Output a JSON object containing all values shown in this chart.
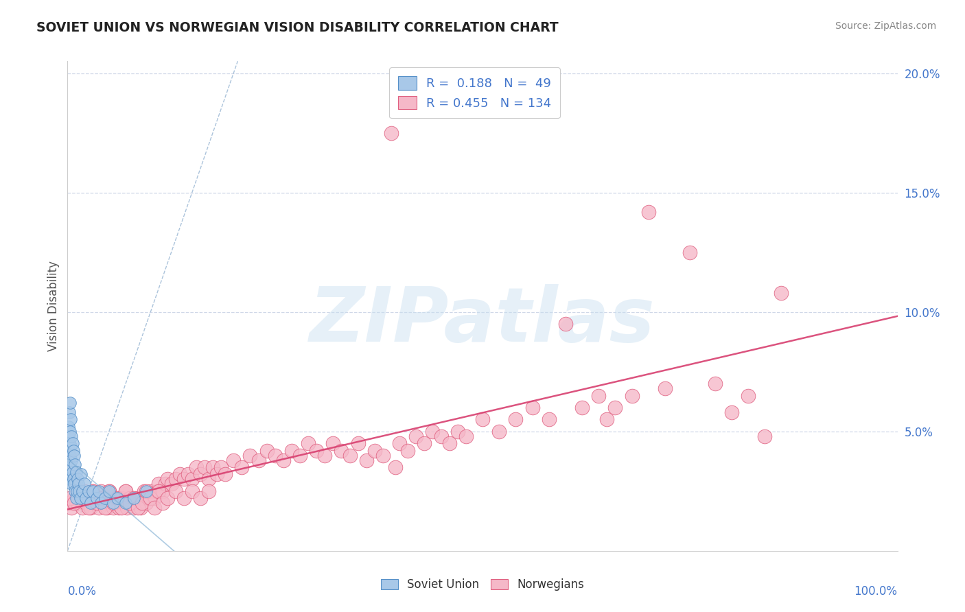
{
  "title": "SOVIET UNION VS NORWEGIAN VISION DISABILITY CORRELATION CHART",
  "source": "Source: ZipAtlas.com",
  "ylabel": "Vision Disability",
  "soviet_R": 0.188,
  "soviet_N": 49,
  "norwegian_R": 0.455,
  "norwegian_N": 134,
  "soviet_color": "#a8c8e8",
  "soviet_edge": "#5590c8",
  "norwegian_color": "#f5b8c8",
  "norwegian_edge": "#e06080",
  "soviet_trend_color": "#7aaad0",
  "norwegian_trend_color": "#d84070",
  "diag_color": "#88aacc",
  "grid_color": "#d0d8e8",
  "background_color": "#ffffff",
  "watermark_text": "ZIPatlas",
  "title_color": "#222222",
  "source_color": "#888888",
  "axis_label_color": "#4477cc",
  "ylabel_color": "#555555",
  "xlim": [
    0.0,
    1.0
  ],
  "ylim": [
    0.0,
    0.205
  ],
  "yticks": [
    0.05,
    0.1,
    0.15,
    0.2
  ],
  "yticklabels": [
    "5.0%",
    "10.0%",
    "15.0%",
    "20.0%"
  ],
  "soviet_x": [
    0.0005,
    0.001,
    0.001,
    0.0015,
    0.002,
    0.002,
    0.002,
    0.003,
    0.003,
    0.003,
    0.003,
    0.004,
    0.004,
    0.004,
    0.005,
    0.005,
    0.005,
    0.006,
    0.006,
    0.007,
    0.007,
    0.008,
    0.008,
    0.009,
    0.009,
    0.01,
    0.01,
    0.011,
    0.012,
    0.013,
    0.014,
    0.015,
    0.016,
    0.018,
    0.02,
    0.022,
    0.025,
    0.028,
    0.03,
    0.035,
    0.038,
    0.04,
    0.045,
    0.05,
    0.055,
    0.06,
    0.07,
    0.08,
    0.095
  ],
  "soviet_y": [
    0.038,
    0.042,
    0.052,
    0.048,
    0.03,
    0.045,
    0.058,
    0.032,
    0.04,
    0.05,
    0.062,
    0.035,
    0.044,
    0.055,
    0.028,
    0.038,
    0.048,
    0.033,
    0.045,
    0.03,
    0.042,
    0.028,
    0.04,
    0.025,
    0.036,
    0.022,
    0.033,
    0.025,
    0.03,
    0.028,
    0.025,
    0.022,
    0.032,
    0.025,
    0.028,
    0.022,
    0.025,
    0.02,
    0.025,
    0.022,
    0.025,
    0.02,
    0.022,
    0.025,
    0.02,
    0.022,
    0.02,
    0.022,
    0.025
  ],
  "norwegian_x": [
    0.002,
    0.005,
    0.008,
    0.01,
    0.012,
    0.015,
    0.018,
    0.02,
    0.022,
    0.025,
    0.028,
    0.03,
    0.032,
    0.035,
    0.038,
    0.04,
    0.042,
    0.045,
    0.048,
    0.05,
    0.052,
    0.055,
    0.058,
    0.06,
    0.062,
    0.065,
    0.068,
    0.07,
    0.072,
    0.075,
    0.078,
    0.08,
    0.082,
    0.085,
    0.088,
    0.09,
    0.092,
    0.095,
    0.098,
    0.1,
    0.105,
    0.108,
    0.11,
    0.115,
    0.118,
    0.12,
    0.125,
    0.13,
    0.135,
    0.14,
    0.145,
    0.15,
    0.155,
    0.16,
    0.165,
    0.17,
    0.175,
    0.18,
    0.185,
    0.19,
    0.2,
    0.21,
    0.22,
    0.23,
    0.24,
    0.25,
    0.26,
    0.27,
    0.28,
    0.29,
    0.3,
    0.31,
    0.32,
    0.33,
    0.34,
    0.35,
    0.36,
    0.37,
    0.38,
    0.39,
    0.395,
    0.4,
    0.41,
    0.42,
    0.43,
    0.44,
    0.45,
    0.46,
    0.47,
    0.48,
    0.5,
    0.52,
    0.54,
    0.56,
    0.58,
    0.6,
    0.62,
    0.64,
    0.65,
    0.66,
    0.68,
    0.7,
    0.72,
    0.75,
    0.78,
    0.8,
    0.82,
    0.84,
    0.86,
    0.003,
    0.008,
    0.015,
    0.02,
    0.025,
    0.03,
    0.035,
    0.04,
    0.045,
    0.05,
    0.055,
    0.06,
    0.065,
    0.07,
    0.075,
    0.08,
    0.085,
    0.09,
    0.095,
    0.1,
    0.105,
    0.11,
    0.115,
    0.12,
    0.13,
    0.14,
    0.15,
    0.16,
    0.17
  ],
  "norwegian_y": [
    0.02,
    0.018,
    0.022,
    0.025,
    0.02,
    0.022,
    0.018,
    0.025,
    0.02,
    0.022,
    0.018,
    0.025,
    0.02,
    0.022,
    0.018,
    0.025,
    0.02,
    0.022,
    0.018,
    0.025,
    0.02,
    0.018,
    0.022,
    0.02,
    0.018,
    0.022,
    0.02,
    0.025,
    0.018,
    0.022,
    0.02,
    0.018,
    0.022,
    0.02,
    0.018,
    0.022,
    0.025,
    0.02,
    0.022,
    0.025,
    0.022,
    0.025,
    0.028,
    0.025,
    0.028,
    0.03,
    0.028,
    0.03,
    0.032,
    0.03,
    0.032,
    0.03,
    0.035,
    0.032,
    0.035,
    0.03,
    0.035,
    0.032,
    0.035,
    0.032,
    0.038,
    0.035,
    0.04,
    0.038,
    0.042,
    0.04,
    0.038,
    0.042,
    0.04,
    0.045,
    0.042,
    0.04,
    0.045,
    0.042,
    0.04,
    0.045,
    0.038,
    0.042,
    0.04,
    0.175,
    0.035,
    0.045,
    0.042,
    0.048,
    0.045,
    0.05,
    0.048,
    0.045,
    0.05,
    0.048,
    0.055,
    0.05,
    0.055,
    0.06,
    0.055,
    0.095,
    0.06,
    0.065,
    0.055,
    0.06,
    0.065,
    0.142,
    0.068,
    0.125,
    0.07,
    0.058,
    0.065,
    0.048,
    0.108,
    0.022,
    0.02,
    0.025,
    0.022,
    0.018,
    0.025,
    0.02,
    0.022,
    0.018,
    0.025,
    0.02,
    0.022,
    0.018,
    0.025,
    0.02,
    0.022,
    0.018,
    0.02,
    0.025,
    0.022,
    0.018,
    0.025,
    0.02,
    0.022,
    0.025,
    0.022,
    0.025,
    0.022,
    0.025
  ]
}
